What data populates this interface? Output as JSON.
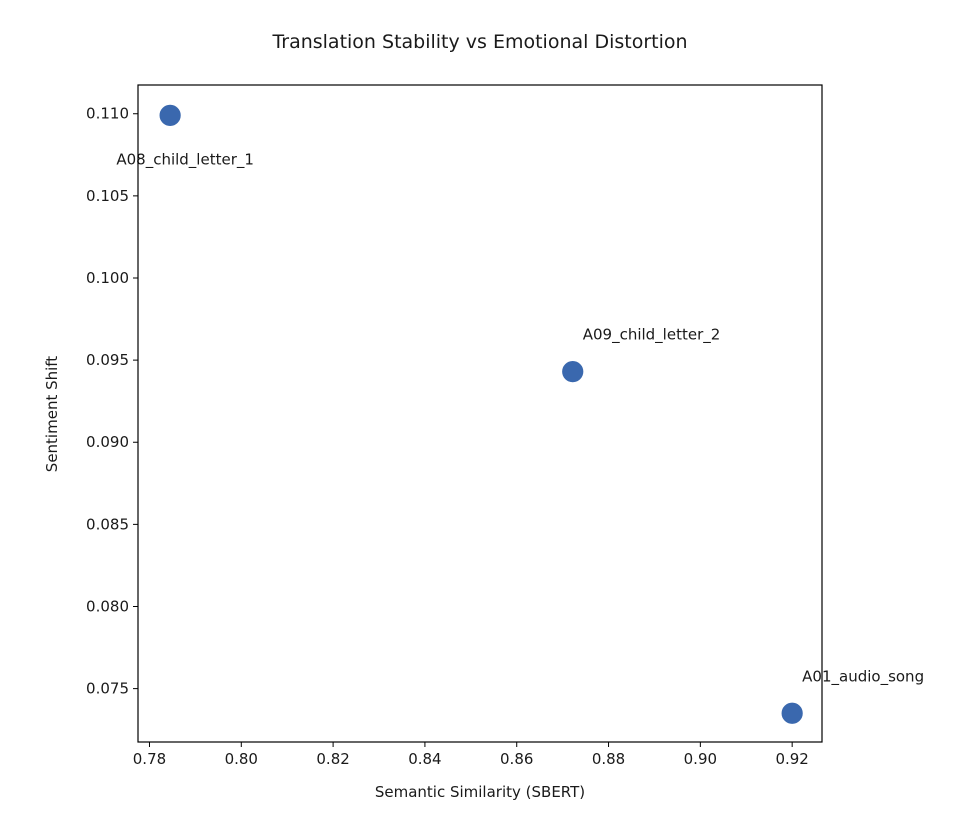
{
  "chart_data": {
    "type": "scatter",
    "title": "Translation Stability vs Emotional Distortion",
    "xlabel": "Semantic Similarity (SBERT)",
    "ylabel": "Sentiment Shift",
    "xlim": [
      0.7775,
      0.9265
    ],
    "ylim": [
      0.07175,
      0.11175
    ],
    "xticks": [
      0.78,
      0.8,
      0.82,
      0.84,
      0.86,
      0.88,
      0.9,
      0.92
    ],
    "xtick_labels": [
      "0.78",
      "0.80",
      "0.82",
      "0.84",
      "0.86",
      "0.88",
      "0.90",
      "0.92"
    ],
    "yticks": [
      0.075,
      0.08,
      0.085,
      0.09,
      0.095,
      0.1,
      0.105,
      0.11
    ],
    "ytick_labels": [
      "0.075",
      "0.080",
      "0.085",
      "0.090",
      "0.095",
      "0.100",
      "0.105",
      "0.110"
    ],
    "grid": false,
    "legend": null,
    "marker_color": "#3a68ae",
    "points": [
      {
        "label": "A08_child_letter_1",
        "x": 0.7845,
        "y": 0.1099
      },
      {
        "label": "A09_child_letter_2",
        "x": 0.8722,
        "y": 0.0943
      },
      {
        "label": "A01_audio_song",
        "x": 0.92,
        "y": 0.0735
      }
    ]
  }
}
